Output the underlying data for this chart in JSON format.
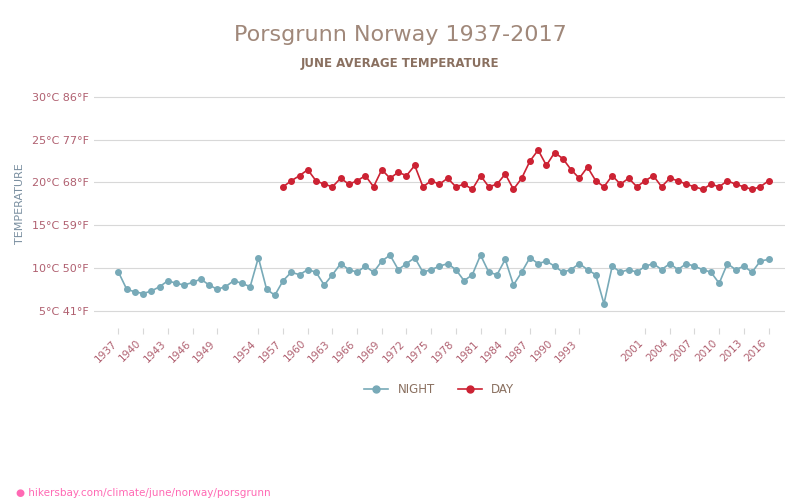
{
  "title": "Porsgrunn Norway 1937-2017",
  "subtitle": "JUNE AVERAGE TEMPERATURE",
  "title_color": "#a0887a",
  "subtitle_color": "#8a7060",
  "ylabel": "TEMPERATURE",
  "ylabel_color": "#7a8fa0",
  "tick_color": "#b06070",
  "background_color": "#ffffff",
  "grid_color": "#d8d8d8",
  "night_color": "#78aab8",
  "day_color": "#cc2233",
  "footer_text": "hikersbay.com/climate/june/norway/porsgrunn",
  "footer_color": "#ff69b4",
  "ylim": [
    3,
    32
  ],
  "yticks_c": [
    5,
    10,
    15,
    20,
    25,
    30
  ],
  "yticks_f": [
    41,
    50,
    59,
    68,
    77,
    86
  ],
  "years_night": [
    1937,
    1938,
    1939,
    1940,
    1941,
    1942,
    1943,
    1944,
    1945,
    1946,
    1947,
    1948,
    1949,
    1950,
    1951,
    1952,
    1953,
    1954,
    1955,
    1956,
    1957,
    1958,
    1959,
    1960,
    1961,
    1962,
    1963,
    1964,
    1965,
    1966,
    1967,
    1968,
    1969,
    1970,
    1971,
    1972,
    1973,
    1974,
    1975,
    1976,
    1977,
    1978,
    1979,
    1980,
    1981,
    1982,
    1983,
    1984,
    1985,
    1986,
    1987,
    1988,
    1989,
    1990,
    1991,
    1992,
    1993,
    1994,
    1995,
    1996,
    1997,
    1998,
    1999,
    2000,
    2001,
    2002,
    2003,
    2004,
    2005,
    2006,
    2007,
    2008,
    2009,
    2010,
    2011,
    2012,
    2013,
    2014,
    2015,
    2016
  ],
  "vals_night": [
    9.5,
    7.5,
    7.2,
    7.0,
    7.3,
    7.8,
    8.5,
    8.2,
    8.0,
    8.3,
    8.7,
    8.0,
    7.5,
    7.8,
    8.5,
    8.2,
    7.8,
    11.2,
    7.5,
    6.8,
    8.5,
    9.5,
    9.2,
    9.8,
    9.5,
    8.0,
    9.2,
    10.5,
    9.8,
    9.5,
    10.2,
    9.5,
    10.8,
    11.5,
    9.8,
    10.5,
    11.2,
    9.5,
    9.8,
    10.2,
    10.5,
    9.8,
    8.5,
    9.2,
    11.5,
    9.5,
    9.2,
    11.0,
    8.0,
    9.5,
    11.2,
    10.5,
    10.8,
    10.2,
    9.5,
    9.8,
    10.5,
    9.8,
    9.2,
    5.8,
    10.2,
    9.5,
    9.8,
    9.5,
    10.2,
    10.5,
    9.8,
    10.5,
    9.8,
    10.5,
    10.2,
    9.8,
    9.5,
    8.2,
    10.5,
    9.8,
    10.2,
    9.5,
    10.8,
    11.0
  ],
  "years_day": [
    1957,
    1958,
    1959,
    1960,
    1961,
    1962,
    1963,
    1964,
    1965,
    1966,
    1967,
    1968,
    1969,
    1970,
    1971,
    1972,
    1973,
    1974,
    1975,
    1976,
    1977,
    1978,
    1979,
    1980,
    1981,
    1982,
    1983,
    1984,
    1985,
    1986,
    1987,
    1988,
    1989,
    1990,
    1991,
    1992,
    1993,
    1994,
    1995,
    1996,
    1997,
    1998,
    1999,
    2000,
    2001,
    2002,
    2003,
    2004,
    2005,
    2006,
    2007,
    2008,
    2009,
    2010,
    2011,
    2012,
    2013,
    2014,
    2015,
    2016
  ],
  "vals_day": [
    19.5,
    20.2,
    20.8,
    21.5,
    20.2,
    19.8,
    19.5,
    20.5,
    19.8,
    20.2,
    20.8,
    19.5,
    21.5,
    20.5,
    21.2,
    20.8,
    22.0,
    19.5,
    20.2,
    19.8,
    20.5,
    19.5,
    19.8,
    19.2,
    20.8,
    19.5,
    19.8,
    21.0,
    19.2,
    20.5,
    22.5,
    23.8,
    22.0,
    23.5,
    22.8,
    21.5,
    20.5,
    21.8,
    20.2,
    19.5,
    20.8,
    19.8,
    20.5,
    19.5,
    20.2,
    20.8,
    19.5,
    20.5,
    20.2,
    19.8,
    19.5,
    19.2,
    19.8,
    19.5,
    20.2,
    19.8,
    19.5,
    19.2,
    19.5,
    20.2
  ],
  "xtick_years": [
    1937,
    1940,
    1943,
    1946,
    1949,
    1954,
    1957,
    1960,
    1963,
    1966,
    1969,
    1972,
    1975,
    1978,
    1981,
    1984,
    1987,
    1990,
    1993,
    2001,
    2004,
    2007,
    2010,
    2013,
    2016
  ]
}
